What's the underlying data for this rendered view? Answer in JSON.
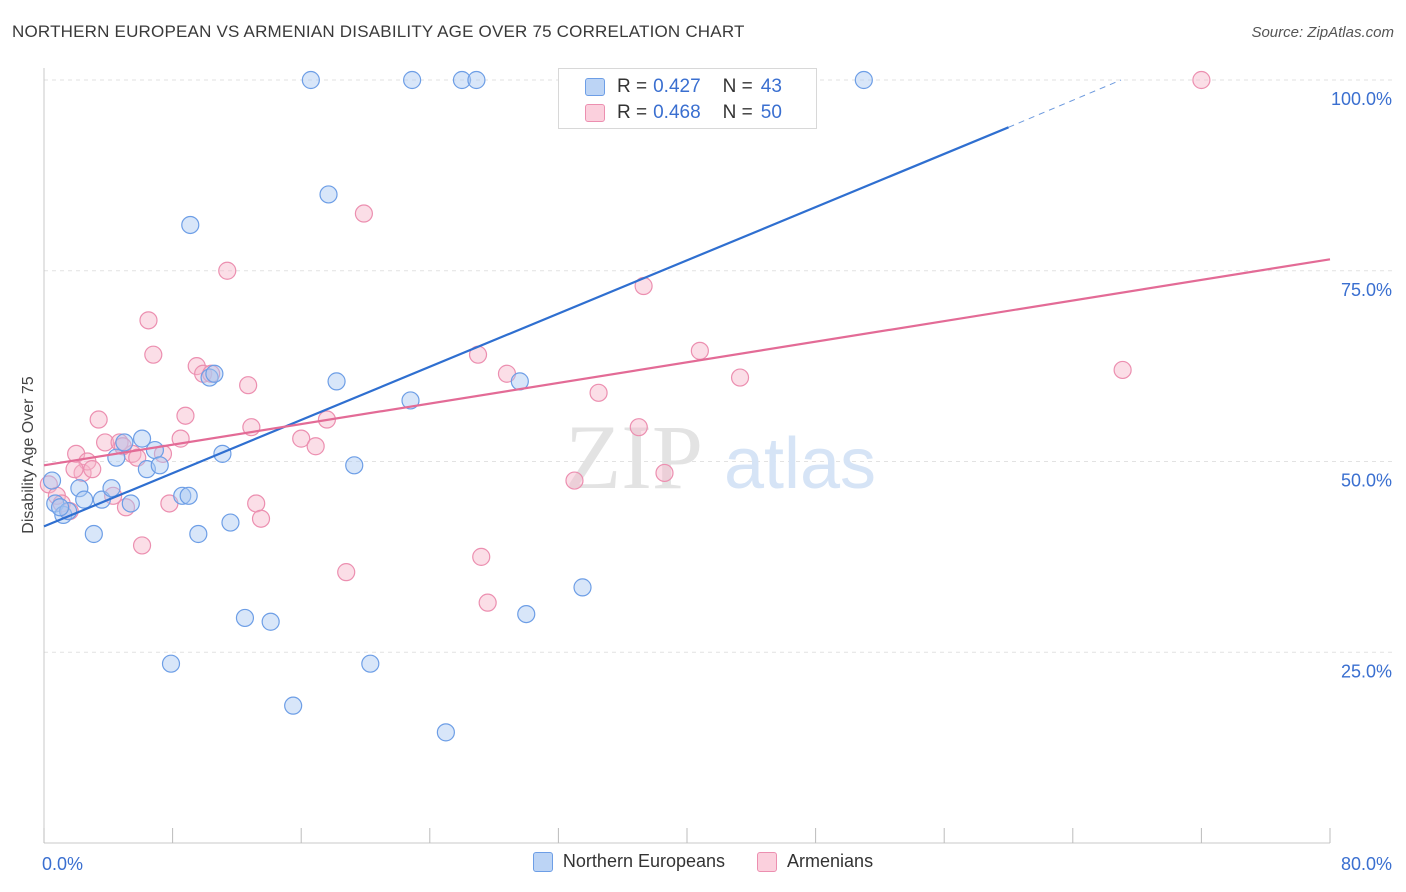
{
  "header": {
    "title": "NORTHERN EUROPEAN VS ARMENIAN DISABILITY AGE OVER 75 CORRELATION CHART",
    "source": "Source: ZipAtlas.com"
  },
  "watermark": {
    "zip": "ZIP",
    "atlas": "atlas"
  },
  "legend": {
    "r_label": "R =",
    "n_label": "N =",
    "rows": [
      {
        "r": "0.427",
        "n": "43"
      },
      {
        "r": "0.468",
        "n": "50"
      }
    ]
  },
  "colors": {
    "blue_fill": "#a9c8f2",
    "blue_stroke": "#6d9ee6",
    "blue_line": "#2f6fd0",
    "pink_fill": "#f6b6ca",
    "pink_stroke": "#ec8fb0",
    "pink_line": "#e36b96",
    "tick_label": "#3a6fd0",
    "grid": "#e2e2e2"
  },
  "chart_data": {
    "type": "scatter",
    "title": "NORTHERN EUROPEAN VS ARMENIAN DISABILITY AGE OVER 75 CORRELATION CHART",
    "ylabel": "Disability Age Over 75",
    "xlim": [
      0,
      80
    ],
    "ylim": [
      0,
      105
    ],
    "x_tick_labels": [
      {
        "value": 0,
        "label": "0.0%"
      },
      {
        "value": 80,
        "label": "80.0%"
      }
    ],
    "y_tick_labels": [
      {
        "value": 25,
        "label": "25.0%"
      },
      {
        "value": 50,
        "label": "50.0%"
      },
      {
        "value": 75,
        "label": "75.0%"
      },
      {
        "value": 100,
        "label": "100.0%"
      }
    ],
    "y_gridlines": [
      25,
      50,
      75,
      100
    ],
    "legend_position": "top-center",
    "series": [
      {
        "name": "Northern Europeans",
        "color": "#a9c8f2",
        "r": 0.427,
        "n": 43,
        "trend": {
          "x0": 0,
          "y0": 41.5,
          "x1": 60,
          "y1": 93.8,
          "dash_to_x": 67,
          "dash_to_y": 100
        },
        "points": [
          [
            0.5,
            47.5
          ],
          [
            0.7,
            44.5
          ],
          [
            1.2,
            43.0
          ],
          [
            1.5,
            43.5
          ],
          [
            2.2,
            46.5
          ],
          [
            2.5,
            45.0
          ],
          [
            3.1,
            40.5
          ],
          [
            3.6,
            45.0
          ],
          [
            4.2,
            46.5
          ],
          [
            4.5,
            50.5
          ],
          [
            5.0,
            52.5
          ],
          [
            5.4,
            44.5
          ],
          [
            6.1,
            53.0
          ],
          [
            6.4,
            49.0
          ],
          [
            6.9,
            51.5
          ],
          [
            7.2,
            49.5
          ],
          [
            7.9,
            23.5
          ],
          [
            8.6,
            45.5
          ],
          [
            9.0,
            45.5
          ],
          [
            9.1,
            81.0
          ],
          [
            9.6,
            40.5
          ],
          [
            10.3,
            61.0
          ],
          [
            10.6,
            61.5
          ],
          [
            11.1,
            51.0
          ],
          [
            11.6,
            42.0
          ],
          [
            12.5,
            29.5
          ],
          [
            14.1,
            29.0
          ],
          [
            15.5,
            18.0
          ],
          [
            16.6,
            100.0
          ],
          [
            17.7,
            85.0
          ],
          [
            18.2,
            60.5
          ],
          [
            19.3,
            49.5
          ],
          [
            20.3,
            23.5
          ],
          [
            22.8,
            58.0
          ],
          [
            22.9,
            100.0
          ],
          [
            25.0,
            14.5
          ],
          [
            26.0,
            100.0
          ],
          [
            26.9,
            100.0
          ],
          [
            29.6,
            60.5
          ],
          [
            30.0,
            30.0
          ],
          [
            33.5,
            33.5
          ],
          [
            51.0,
            100.0
          ],
          [
            1.0,
            44.0
          ]
        ]
      },
      {
        "name": "Armenians",
        "color": "#f6b6ca",
        "r": 0.468,
        "n": 50,
        "trend": {
          "x0": 0,
          "y0": 49.5,
          "x1": 80,
          "y1": 76.5
        },
        "points": [
          [
            0.3,
            47.0
          ],
          [
            0.8,
            45.5
          ],
          [
            1.1,
            44.5
          ],
          [
            1.6,
            43.5
          ],
          [
            2.0,
            51.0
          ],
          [
            2.4,
            48.5
          ],
          [
            2.7,
            50.0
          ],
          [
            3.0,
            49.0
          ],
          [
            3.4,
            55.5
          ],
          [
            3.8,
            52.5
          ],
          [
            4.3,
            45.5
          ],
          [
            4.7,
            52.5
          ],
          [
            5.1,
            44.0
          ],
          [
            5.5,
            51.0
          ],
          [
            5.8,
            50.5
          ],
          [
            6.1,
            39.0
          ],
          [
            6.5,
            68.5
          ],
          [
            6.8,
            64.0
          ],
          [
            7.4,
            51.0
          ],
          [
            7.8,
            44.5
          ],
          [
            8.5,
            53.0
          ],
          [
            8.8,
            56.0
          ],
          [
            9.5,
            62.5
          ],
          [
            9.9,
            61.5
          ],
          [
            10.4,
            61.5
          ],
          [
            11.4,
            75.0
          ],
          [
            12.7,
            60.0
          ],
          [
            12.9,
            54.5
          ],
          [
            13.2,
            44.5
          ],
          [
            13.5,
            42.5
          ],
          [
            16.0,
            53.0
          ],
          [
            16.9,
            52.0
          ],
          [
            17.6,
            55.5
          ],
          [
            18.8,
            35.5
          ],
          [
            19.9,
            82.5
          ],
          [
            27.0,
            64.0
          ],
          [
            27.2,
            37.5
          ],
          [
            27.6,
            31.5
          ],
          [
            28.8,
            61.5
          ],
          [
            33.0,
            47.5
          ],
          [
            34.5,
            59.0
          ],
          [
            37.0,
            54.5
          ],
          [
            37.3,
            73.0
          ],
          [
            38.6,
            48.5
          ],
          [
            40.8,
            64.5
          ],
          [
            43.3,
            61.0
          ],
          [
            67.1,
            62.0
          ],
          [
            72.0,
            100.0
          ],
          [
            1.9,
            49.0
          ],
          [
            4.9,
            52.0
          ]
        ]
      }
    ]
  },
  "bottom_legend": {
    "items": [
      {
        "label": "Northern Europeans"
      },
      {
        "label": "Armenians"
      }
    ]
  }
}
